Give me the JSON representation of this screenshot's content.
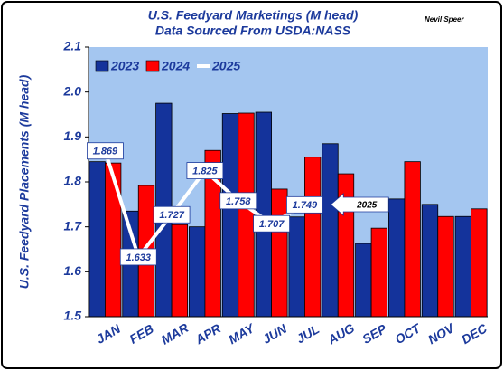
{
  "chart_data": {
    "type": "bar",
    "title": "U.S. Feedyard Marketings (M head)",
    "subtitle": "Data Sourced From USDA:NASS",
    "author": "Nevil Speer",
    "y_label": "U.S. Feedyard Placements (M head)",
    "annotation": "2025",
    "categories": [
      "JAN",
      "FEB",
      "MAR",
      "APR",
      "MAY",
      "JUN",
      "JUL",
      "AUG",
      "SEP",
      "OCT",
      "NOV",
      "DEC"
    ],
    "series": [
      {
        "name": "2023",
        "type": "bar",
        "color": "#14339b",
        "values": [
          1.845,
          1.735,
          1.975,
          1.7,
          1.952,
          1.955,
          1.722,
          1.885,
          1.663,
          1.762,
          1.75,
          1.723
        ]
      },
      {
        "name": "2024",
        "type": "bar",
        "color": "#ff0000",
        "values": [
          1.842,
          1.792,
          1.705,
          1.87,
          1.953,
          1.784,
          1.855,
          1.818,
          1.697,
          1.845,
          1.723,
          1.74
        ]
      },
      {
        "name": "2025",
        "type": "line",
        "color": "#ffffff",
        "values": [
          1.869,
          1.633,
          1.727,
          1.825,
          1.758,
          1.707,
          1.749,
          null,
          null,
          null,
          null,
          null
        ]
      }
    ],
    "ylim": [
      1.5,
      2.1
    ],
    "yticks": [
      1.5,
      1.6,
      1.7,
      1.8,
      1.9,
      {
        "value": 2,
        "label": "2.0"
      },
      2.1
    ],
    "grid": false,
    "legend": "top-left"
  }
}
